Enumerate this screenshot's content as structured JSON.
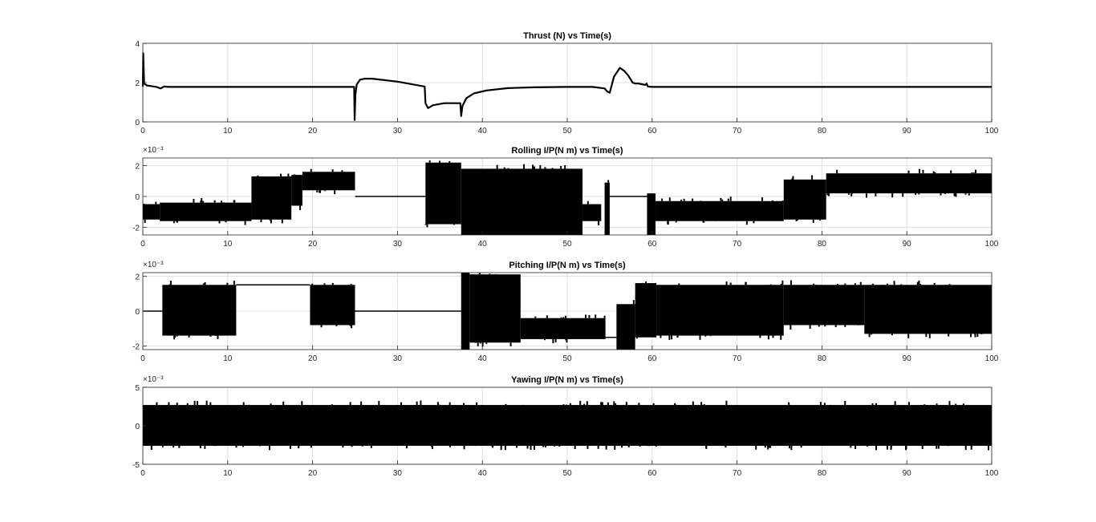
{
  "figure": {
    "background": "#ffffff",
    "line_color": "#000000",
    "grid_color": "#dfdfdf",
    "axes_color": "#262626"
  },
  "chart_data": [
    {
      "type": "line",
      "title": "Thrust (N) vs Time(s)",
      "xlabel": "",
      "ylabel": "",
      "xlim": [
        0,
        100
      ],
      "ylim": [
        0,
        4
      ],
      "xticks": [
        "0",
        "10",
        "20",
        "30",
        "40",
        "50",
        "60",
        "70",
        "80",
        "90",
        "100"
      ],
      "yticks": [
        "0",
        "2",
        "4"
      ],
      "exponent_label": "",
      "grid": true,
      "style": "trace",
      "series": [
        {
          "x": [
            0,
            0.05,
            0.15,
            0.5,
            1.0,
            1.6,
            2.1,
            2.5,
            3.0,
            5,
            10,
            15,
            20,
            24.9,
            24.95,
            25.05,
            25.2,
            25.6,
            26.2,
            27,
            30,
            33.2,
            33.3,
            33.6,
            34.2,
            35.5,
            37.4,
            37.5,
            37.65,
            38.1,
            39,
            40.5,
            43,
            46,
            50,
            53,
            54.4,
            54.7,
            55,
            55.5,
            56.2,
            56.7,
            57.2,
            57.7,
            58,
            58.4,
            58.8,
            59.2,
            59.35,
            59.5,
            60,
            65,
            70,
            80,
            90,
            100
          ],
          "y": [
            1.8,
            3.5,
            1.95,
            1.85,
            1.82,
            1.78,
            1.7,
            1.8,
            1.78,
            1.78,
            1.78,
            1.78,
            1.78,
            1.78,
            0.1,
            1.4,
            1.9,
            2.15,
            2.2,
            2.2,
            2.05,
            1.8,
            0.95,
            0.7,
            0.85,
            0.95,
            0.95,
            0.3,
            0.8,
            1.2,
            1.45,
            1.6,
            1.72,
            1.76,
            1.78,
            1.78,
            1.7,
            1.55,
            1.48,
            2.3,
            2.75,
            2.6,
            2.35,
            2.0,
            1.95,
            1.95,
            1.92,
            1.88,
            1.95,
            1.8,
            1.78,
            1.78,
            1.78,
            1.78,
            1.78,
            1.78
          ]
        }
      ]
    },
    {
      "type": "line",
      "title": "Rolling I/P(N m) vs Time(s)",
      "xlabel": "",
      "ylabel": "",
      "xlim": [
        0,
        100
      ],
      "ylim": [
        -2.5,
        2.5
      ],
      "xticks": [
        "0",
        "10",
        "20",
        "30",
        "40",
        "50",
        "60",
        "70",
        "80",
        "90",
        "100"
      ],
      "yticks": [
        "-2",
        "0",
        "2"
      ],
      "exponent_label": "×10⁻³",
      "grid": true,
      "style": "bands",
      "units": "x10^-3",
      "bands": [
        {
          "x0": 0,
          "x1": 2.0,
          "lo": -1.5,
          "hi": -0.5
        },
        {
          "x0": 2.0,
          "x1": 12.8,
          "lo": -1.6,
          "hi": -0.4
        },
        {
          "x0": 12.8,
          "x1": 17.5,
          "lo": -1.5,
          "hi": 1.3
        },
        {
          "x0": 17.5,
          "x1": 18.8,
          "lo": -0.6,
          "hi": 1.4
        },
        {
          "x0": 18.8,
          "x1": 25.0,
          "lo": 0.4,
          "hi": 1.6
        },
        {
          "x0": 33.3,
          "x1": 37.5,
          "lo": -1.8,
          "hi": 2.2
        },
        {
          "x0": 37.5,
          "x1": 51.8,
          "lo": -2.5,
          "hi": 1.8
        },
        {
          "x0": 51.8,
          "x1": 54.0,
          "lo": -1.6,
          "hi": -0.5
        },
        {
          "x0": 54.4,
          "x1": 55.0,
          "lo": -2.5,
          "hi": 0.9
        },
        {
          "x0": 59.4,
          "x1": 60.4,
          "lo": -2.5,
          "hi": 0.2
        },
        {
          "x0": 60.4,
          "x1": 75.5,
          "lo": -1.6,
          "hi": -0.3
        },
        {
          "x0": 75.5,
          "x1": 80.5,
          "lo": -1.5,
          "hi": 1.1
        },
        {
          "x0": 80.5,
          "x1": 100,
          "lo": 0.2,
          "hi": 1.5
        }
      ],
      "flat_segments": [
        {
          "x0": 25.0,
          "x1": 33.3,
          "y": 0.0
        },
        {
          "x0": 55.0,
          "x1": 59.4,
          "y": 0.0
        }
      ]
    },
    {
      "type": "line",
      "title": "Pitching I/P(N m) vs Time(s)",
      "xlabel": "",
      "ylabel": "",
      "xlim": [
        0,
        100
      ],
      "ylim": [
        -2.2,
        2.2
      ],
      "xticks": [
        "0",
        "10",
        "20",
        "30",
        "40",
        "50",
        "60",
        "70",
        "80",
        "90",
        "100"
      ],
      "yticks": [
        "-2",
        "0",
        "2"
      ],
      "exponent_label": "×10⁻³",
      "grid": true,
      "style": "bands",
      "units": "x10^-3",
      "bands": [
        {
          "x0": 2.3,
          "x1": 11.0,
          "lo": -1.4,
          "hi": 1.5
        },
        {
          "x0": 19.7,
          "x1": 25.0,
          "lo": -0.8,
          "hi": 1.5
        },
        {
          "x0": 37.5,
          "x1": 38.5,
          "lo": -2.2,
          "hi": 2.2
        },
        {
          "x0": 38.5,
          "x1": 44.5,
          "lo": -1.8,
          "hi": 2.1
        },
        {
          "x0": 44.5,
          "x1": 54.5,
          "lo": -1.6,
          "hi": -0.4
        },
        {
          "x0": 55.8,
          "x1": 58.0,
          "lo": -2.2,
          "hi": 0.4
        },
        {
          "x0": 58.0,
          "x1": 60.5,
          "lo": -1.5,
          "hi": 1.6
        },
        {
          "x0": 60.5,
          "x1": 75.5,
          "lo": -1.4,
          "hi": 1.5
        },
        {
          "x0": 75.5,
          "x1": 85.0,
          "lo": -0.8,
          "hi": 1.5
        },
        {
          "x0": 85.0,
          "x1": 100,
          "lo": -1.3,
          "hi": 1.5
        }
      ],
      "flat_segments": [
        {
          "x0": 0,
          "x1": 2.3,
          "y": 0.0
        },
        {
          "x0": 11.0,
          "x1": 19.7,
          "y": 1.5
        },
        {
          "x0": 25.0,
          "x1": 37.5,
          "y": 0.0
        },
        {
          "x0": 54.5,
          "x1": 55.8,
          "y": -1.5
        }
      ]
    },
    {
      "type": "line",
      "title": "Yawing I/P(N m) vs Time(s)",
      "xlabel": "",
      "ylabel": "",
      "xlim": [
        0,
        100
      ],
      "ylim": [
        -5,
        5
      ],
      "xticks": [
        "0",
        "10",
        "20",
        "30",
        "40",
        "50",
        "60",
        "70",
        "80",
        "90",
        "100"
      ],
      "yticks": [
        "-5",
        "0",
        "5"
      ],
      "exponent_label": "×10⁻³",
      "grid": true,
      "style": "bands",
      "units": "x10^-3",
      "bands": [
        {
          "x0": 0,
          "x1": 100,
          "lo": -2.6,
          "hi": 2.7
        }
      ],
      "flat_segments": []
    }
  ]
}
